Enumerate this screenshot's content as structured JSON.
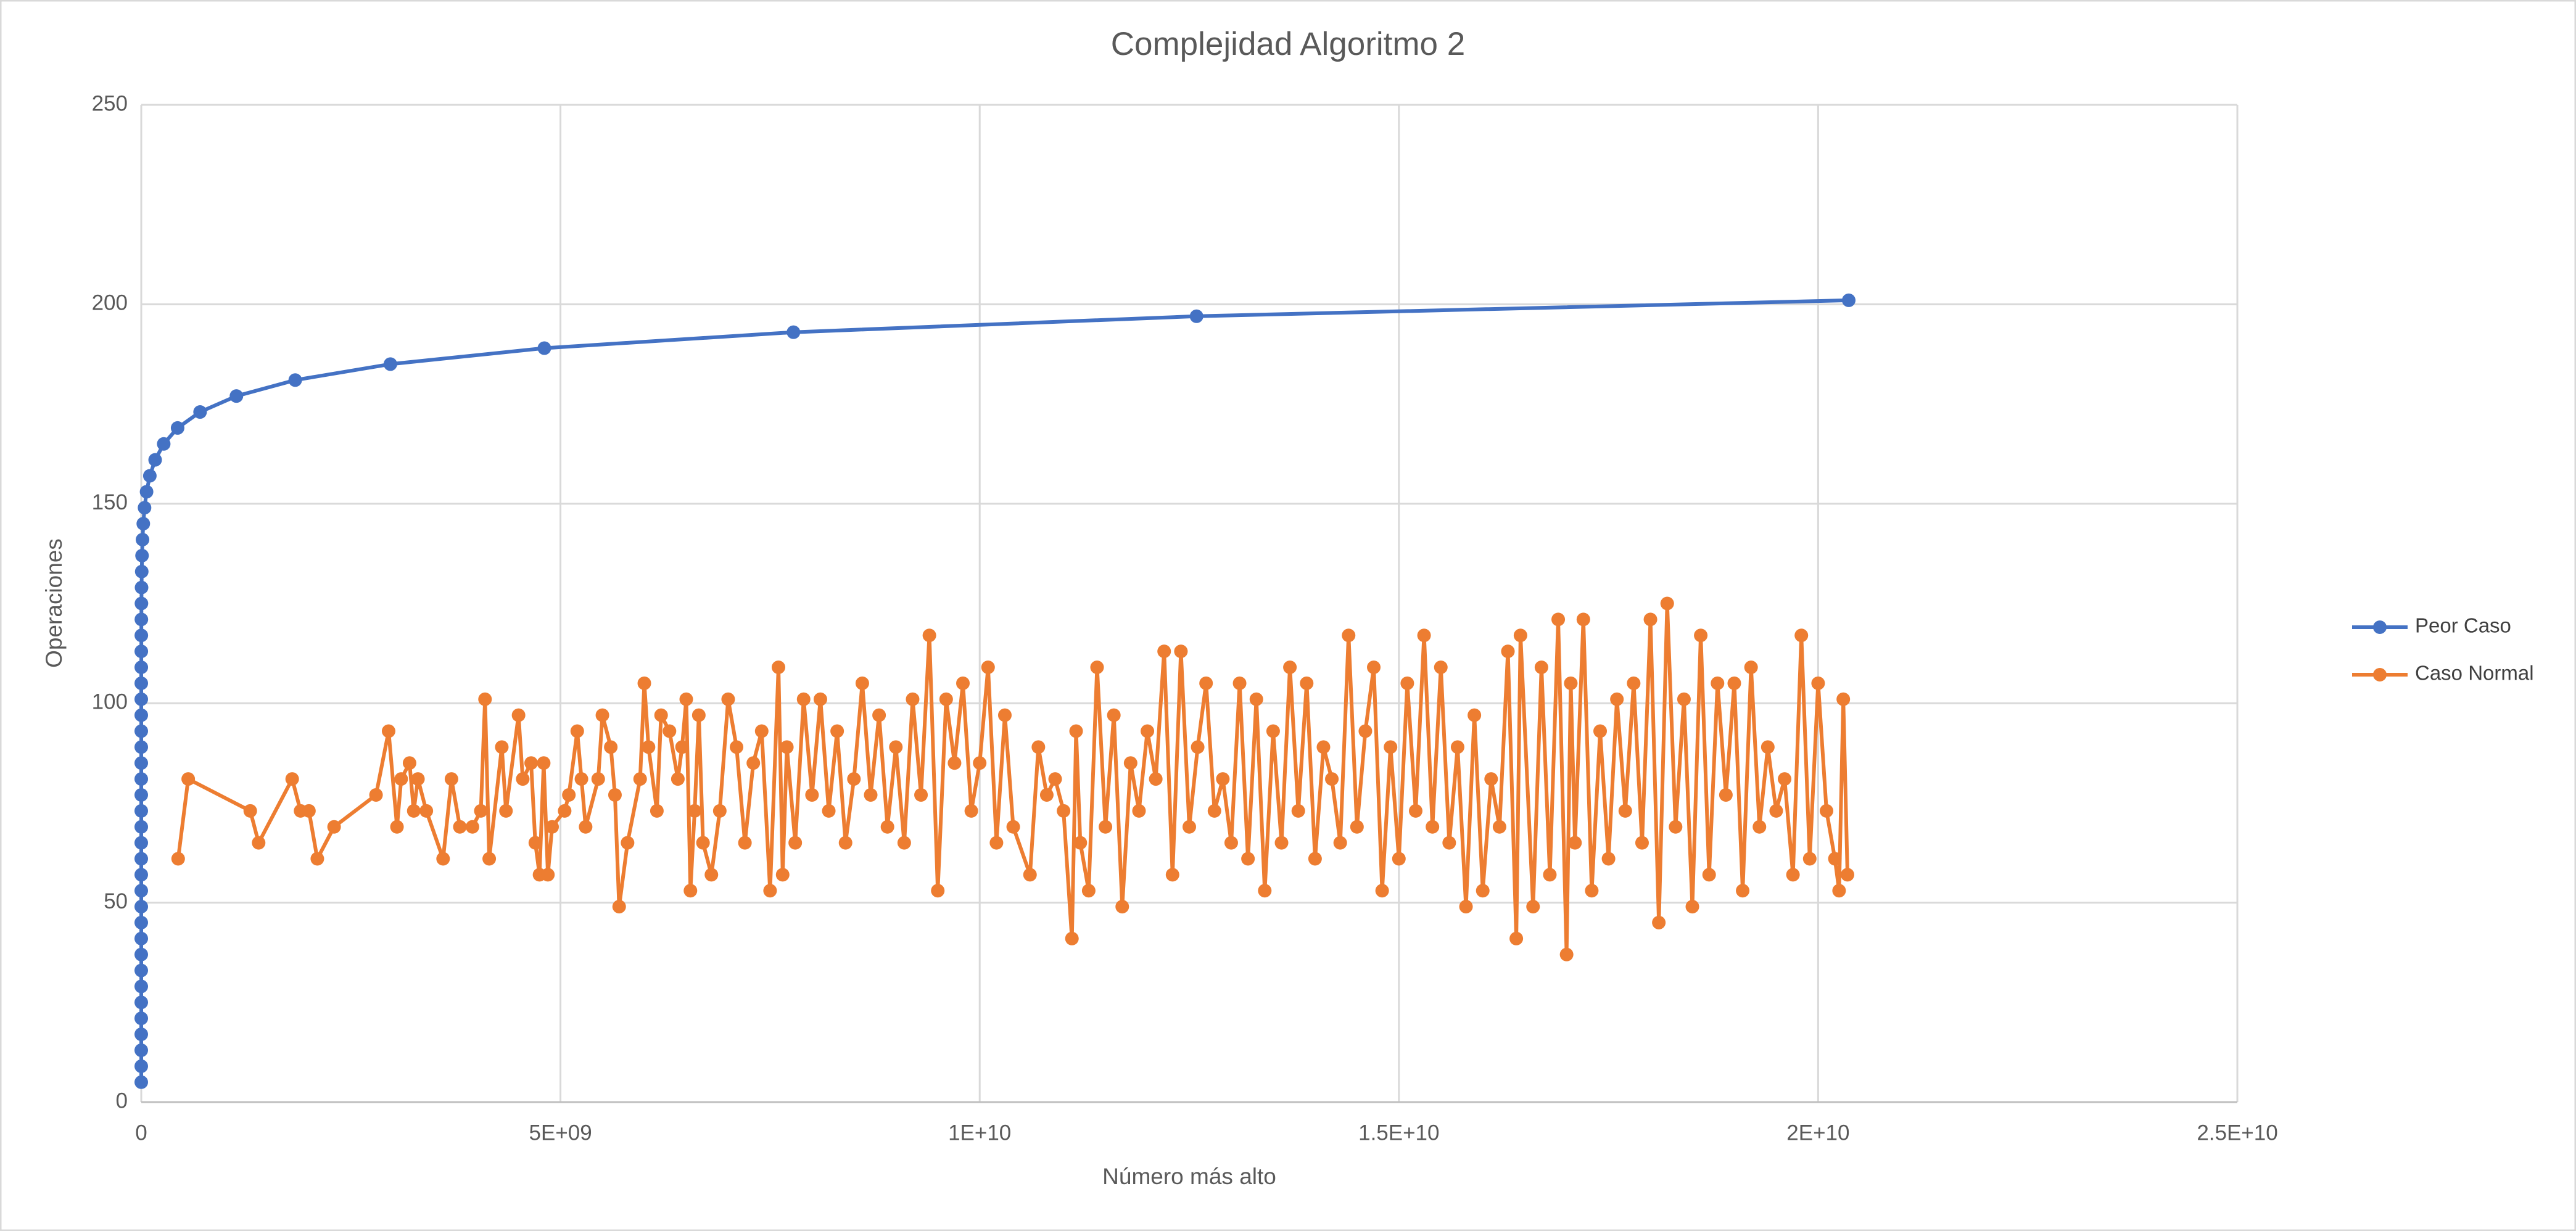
{
  "chart_data": {
    "type": "scatter",
    "title": "Complejidad Algoritmo 2",
    "x_label": "Número más alto",
    "y_label": "Operaciones",
    "xlim": [
      0,
      25000000000.0
    ],
    "xticks": [
      0,
      {
        "value": 5000000000.0,
        "label": "5E+09"
      },
      {
        "value": 10000000000.0,
        "label": "1E+10"
      },
      {
        "value": 15000000000.0,
        "label": "1.5E+10"
      },
      {
        "value": 20000000000.0,
        "label": "2E+10"
      },
      {
        "value": 25000000000.0,
        "label": "2.5E+10"
      }
    ],
    "ylim": [
      0,
      250
    ],
    "yticks": [
      0,
      50,
      100,
      150,
      200,
      250
    ],
    "grid": true,
    "legend": "right",
    "series": [
      {
        "name": "Peor Caso",
        "color": "#4472c4",
        "x": [
          1,
          2,
          3,
          5,
          8,
          13,
          21,
          34,
          55,
          89,
          144,
          233,
          377,
          610,
          987,
          1597,
          2584,
          4181,
          6765,
          10946,
          17711,
          28657,
          46368,
          75025,
          121393,
          196418,
          317811,
          514229,
          832040,
          1346269,
          2178309,
          3524578,
          5702887,
          9227465,
          14930352,
          24157817,
          39088169,
          63245986,
          102334155,
          165580141,
          267914296,
          433494437,
          701408733,
          1134903170,
          1836311903,
          2971215073,
          4807526976,
          7778742049,
          12586269025,
          20365011074
        ],
        "values": [
          5,
          9,
          13,
          17,
          21,
          25,
          29,
          33,
          37,
          41,
          45,
          49,
          53,
          57,
          61,
          65,
          69,
          73,
          77,
          81,
          85,
          89,
          93,
          97,
          101,
          105,
          109,
          113,
          117,
          121,
          125,
          129,
          133,
          137,
          141,
          145,
          149,
          153,
          157,
          161,
          165,
          169,
          173,
          177,
          181,
          185,
          189,
          193,
          197,
          201
        ]
      },
      {
        "name": "Caso Normal",
        "color": "#ed7d31",
        "x": [
          440000000.0,
          560000000.0,
          1300000000.0,
          1400000000.0,
          1800000000.0,
          1900000000.0,
          2000000000.0,
          2100000000.0,
          2300000000.0,
          2800000000.0,
          2950000000.0,
          3050000000.0,
          3100000000.0,
          3200000000.0,
          3250000000.0,
          3300000000.0,
          3400000000.0,
          3600000000.0,
          3700000000.0,
          3800000000.0,
          3950000000.0,
          4050000000.0,
          4100000000.0,
          4150000000.0,
          4300000000.0,
          4350000000.0,
          4500000000.0,
          4550000000.0,
          4650000000.0,
          4700000000.0,
          4750000000.0,
          4800000000.0,
          4850000000.0,
          4900000000.0,
          5050000000.0,
          5100000000.0,
          5200000000.0,
          5250000000.0,
          5300000000.0,
          5450000000.0,
          5500000000.0,
          5600000000.0,
          5650000000.0,
          5700000000.0,
          5800000000.0,
          5950000000.0,
          6000000000.0,
          6050000000.0,
          6150000000.0,
          6200000000.0,
          6300000000.0,
          6400000000.0,
          6450000000.0,
          6500000000.0,
          6550000000.0,
          6600000000.0,
          6650000000.0,
          6700000000.0,
          6800000000.0,
          6900000000.0,
          7000000000.0,
          7100000000.0,
          7200000000.0,
          7300000000.0,
          7400000000.0,
          7500000000.0,
          7600000000.0,
          7650000000.0,
          7700000000.0,
          7800000000.0,
          7900000000.0,
          8000000000.0,
          8100000000.0,
          8200000000.0,
          8300000000.0,
          8400000000.0,
          8500000000.0,
          8600000000.0,
          8700000000.0,
          8800000000.0,
          8900000000.0,
          9000000000.0,
          9100000000.0,
          9200000000.0,
          9300000000.0,
          9400000000.0,
          9500000000.0,
          9600000000.0,
          9700000000.0,
          9800000000.0,
          9900000000.0,
          10000000000.0,
          10100000000.0,
          10200000000.0,
          10300000000.0,
          10400000000.0,
          10600000000.0,
          10700000000.0,
          10800000000.0,
          10900000000.0,
          11000000000.0,
          11100000000.0,
          11150000000.0,
          11200000000.0,
          11300000000.0,
          11400000000.0,
          11500000000.0,
          11600000000.0,
          11700000000.0,
          11800000000.0,
          11900000000.0,
          12000000000.0,
          12100000000.0,
          12200000000.0,
          12300000000.0,
          12400000000.0,
          12500000000.0,
          12600000000.0,
          12700000000.0,
          12800000000.0,
          12900000000.0,
          13000000000.0,
          13100000000.0,
          13200000000.0,
          13300000000.0,
          13400000000.0,
          13500000000.0,
          13600000000.0,
          13700000000.0,
          13800000000.0,
          13900000000.0,
          14000000000.0,
          14100000000.0,
          14200000000.0,
          14300000000.0,
          14400000000.0,
          14500000000.0,
          14600000000.0,
          14700000000.0,
          14800000000.0,
          14900000000.0,
          15000000000.0,
          15100000000.0,
          15200000000.0,
          15300000000.0,
          15400000000.0,
          15500000000.0,
          15600000000.0,
          15700000000.0,
          15800000000.0,
          15900000000.0,
          16000000000.0,
          16100000000.0,
          16200000000.0,
          16300000000.0,
          16400000000.0,
          16450000000.0,
          16600000000.0,
          16700000000.0,
          16800000000.0,
          16900000000.0,
          17000000000.0,
          17050000000.0,
          17100000000.0,
          17200000000.0,
          17300000000.0,
          17400000000.0,
          17500000000.0,
          17600000000.0,
          17700000000.0,
          17800000000.0,
          17900000000.0,
          18000000000.0,
          18100000000.0,
          18200000000.0,
          18300000000.0,
          18400000000.0,
          18500000000.0,
          18600000000.0,
          18700000000.0,
          18800000000.0,
          18900000000.0,
          19000000000.0,
          19100000000.0,
          19200000000.0,
          19300000000.0,
          19400000000.0,
          19500000000.0,
          19600000000.0,
          19700000000.0,
          19800000000.0,
          19900000000.0,
          20000000000.0,
          20100000000.0,
          20200000000.0,
          20250000000.0,
          20300000000.0,
          20350000000.0
        ],
        "values": [
          61,
          81,
          73,
          65,
          81,
          73,
          73,
          61,
          69,
          77,
          93,
          69,
          81,
          85,
          73,
          81,
          73,
          61,
          81,
          69,
          69,
          73,
          101,
          61,
          89,
          73,
          97,
          81,
          85,
          65,
          57,
          85,
          57,
          69,
          73,
          77,
          93,
          81,
          69,
          81,
          97,
          89,
          77,
          49,
          65,
          81,
          105,
          89,
          73,
          97,
          93,
          81,
          89,
          101,
          53,
          73,
          97,
          65,
          57,
          73,
          101,
          89,
          65,
          85,
          93,
          53,
          109,
          57,
          89,
          65,
          101,
          77,
          101,
          73,
          93,
          65,
          81,
          105,
          77,
          97,
          69,
          89,
          65,
          101,
          77,
          117,
          53,
          101,
          85,
          105,
          73,
          85,
          109,
          65,
          97,
          69,
          57,
          89,
          77,
          81,
          73,
          41,
          93,
          65,
          53,
          109,
          69,
          97,
          49,
          85,
          73,
          93,
          81,
          113,
          57,
          113,
          69,
          89,
          105,
          73,
          81,
          65,
          105,
          61,
          101,
          53,
          93,
          65,
          109,
          73,
          105,
          61,
          89,
          81,
          65,
          117,
          69,
          93,
          109,
          53,
          89,
          61,
          105,
          73,
          117,
          69,
          109,
          65,
          89,
          49,
          97,
          53,
          81,
          69,
          113,
          41,
          117,
          49,
          109,
          57,
          121,
          37,
          105,
          65,
          121,
          53,
          93,
          61,
          101,
          73,
          105,
          65,
          121,
          45,
          125,
          69,
          101,
          49,
          117,
          57,
          105,
          77,
          105,
          53,
          109,
          69,
          89,
          73,
          81,
          57,
          117,
          61,
          105,
          73,
          61,
          53,
          101,
          57
        ]
      }
    ]
  }
}
